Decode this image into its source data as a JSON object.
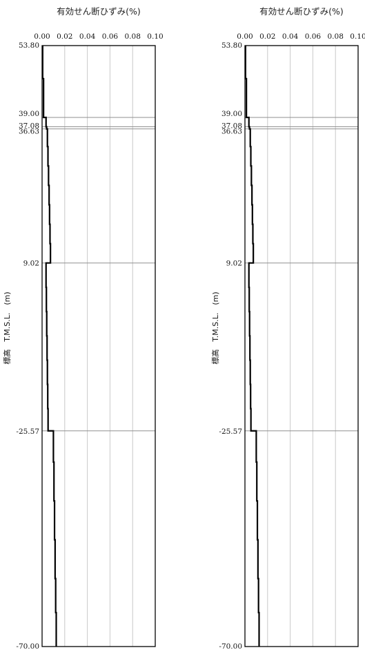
{
  "chart_data": [
    {
      "type": "line",
      "title": "有効せん断ひずみ(%)",
      "xlabel": "",
      "ylabel": "標高　T.M.S.L.　(m)",
      "xlim": [
        0.0,
        0.1
      ],
      "ylim": [
        -70.0,
        53.8
      ],
      "x_ticks": [
        "0.00",
        "0.02",
        "0.04",
        "0.06",
        "0.08",
        "0.10"
      ],
      "layer_boundaries": [
        "53.80",
        "39.00",
        "37.08",
        "36.63",
        "9.02",
        "-25.57",
        "-70.00"
      ],
      "grid": true,
      "series": [
        {
          "points": [
            [
              0.0005,
              53.8
            ],
            [
              0.0005,
              47.0
            ],
            [
              0.0013,
              47.0
            ],
            [
              0.0013,
              39.0
            ],
            [
              0.0035,
              39.0
            ],
            [
              0.0035,
              37.08
            ],
            [
              0.004,
              37.08
            ],
            [
              0.004,
              36.63
            ],
            [
              0.0047,
              36.63
            ],
            [
              0.0047,
              33.0
            ],
            [
              0.0052,
              33.0
            ],
            [
              0.0052,
              29.0
            ],
            [
              0.0057,
              29.0
            ],
            [
              0.0057,
              25.0
            ],
            [
              0.0062,
              25.0
            ],
            [
              0.0062,
              21.0
            ],
            [
              0.0066,
              21.0
            ],
            [
              0.0066,
              17.0
            ],
            [
              0.007,
              17.0
            ],
            [
              0.007,
              13.0
            ],
            [
              0.0074,
              13.0
            ],
            [
              0.0074,
              9.02
            ],
            [
              0.0035,
              9.02
            ],
            [
              0.0035,
              4.0
            ],
            [
              0.0038,
              4.0
            ],
            [
              0.0038,
              -1.0
            ],
            [
              0.0041,
              -1.0
            ],
            [
              0.0041,
              -6.0
            ],
            [
              0.0044,
              -6.0
            ],
            [
              0.0044,
              -11.0
            ],
            [
              0.0047,
              -11.0
            ],
            [
              0.0047,
              -16.0
            ],
            [
              0.005,
              -16.0
            ],
            [
              0.005,
              -21.0
            ],
            [
              0.0053,
              -21.0
            ],
            [
              0.0053,
              -25.57
            ],
            [
              0.01,
              -25.57
            ],
            [
              0.01,
              -32.0
            ],
            [
              0.0105,
              -32.0
            ],
            [
              0.0105,
              -40.0
            ],
            [
              0.011,
              -40.0
            ],
            [
              0.011,
              -48.0
            ],
            [
              0.0115,
              -48.0
            ],
            [
              0.0115,
              -56.0
            ],
            [
              0.012,
              -56.0
            ],
            [
              0.012,
              -63.0
            ],
            [
              0.0125,
              -63.0
            ],
            [
              0.0125,
              -70.0
            ]
          ]
        }
      ]
    },
    {
      "type": "line",
      "title": "有効せん断ひずみ(%)",
      "xlabel": "",
      "ylabel": "標高　T.M.S.L.　(m)",
      "xlim": [
        0.0,
        0.1
      ],
      "ylim": [
        -70.0,
        53.8
      ],
      "x_ticks": [
        "0.00",
        "0.02",
        "0.04",
        "0.06",
        "0.08",
        "0.10"
      ],
      "layer_boundaries": [
        "53.80",
        "39.00",
        "37.08",
        "36.63",
        "9.02",
        "-25.57",
        "-70.00"
      ],
      "grid": true,
      "series": [
        {
          "points": [
            [
              0.0005,
              53.8
            ],
            [
              0.0005,
              47.0
            ],
            [
              0.0013,
              47.0
            ],
            [
              0.0013,
              39.0
            ],
            [
              0.0035,
              39.0
            ],
            [
              0.0035,
              37.08
            ],
            [
              0.004,
              37.08
            ],
            [
              0.004,
              36.63
            ],
            [
              0.0047,
              36.63
            ],
            [
              0.0047,
              33.0
            ],
            [
              0.0052,
              33.0
            ],
            [
              0.0052,
              29.0
            ],
            [
              0.0057,
              29.0
            ],
            [
              0.0057,
              25.0
            ],
            [
              0.0062,
              25.0
            ],
            [
              0.0062,
              21.0
            ],
            [
              0.0066,
              21.0
            ],
            [
              0.0066,
              17.0
            ],
            [
              0.007,
              17.0
            ],
            [
              0.007,
              13.0
            ],
            [
              0.0074,
              13.0
            ],
            [
              0.0074,
              9.02
            ],
            [
              0.0035,
              9.02
            ],
            [
              0.0035,
              4.0
            ],
            [
              0.0038,
              4.0
            ],
            [
              0.0038,
              -1.0
            ],
            [
              0.0041,
              -1.0
            ],
            [
              0.0041,
              -6.0
            ],
            [
              0.0044,
              -6.0
            ],
            [
              0.0044,
              -11.0
            ],
            [
              0.0047,
              -11.0
            ],
            [
              0.0047,
              -16.0
            ],
            [
              0.005,
              -16.0
            ],
            [
              0.005,
              -21.0
            ],
            [
              0.0053,
              -21.0
            ],
            [
              0.0053,
              -25.57
            ],
            [
              0.01,
              -25.57
            ],
            [
              0.01,
              -32.0
            ],
            [
              0.0105,
              -32.0
            ],
            [
              0.0105,
              -40.0
            ],
            [
              0.011,
              -40.0
            ],
            [
              0.011,
              -48.0
            ],
            [
              0.0115,
              -48.0
            ],
            [
              0.0115,
              -56.0
            ],
            [
              0.012,
              -56.0
            ],
            [
              0.012,
              -63.0
            ],
            [
              0.0125,
              -63.0
            ],
            [
              0.0125,
              -70.0
            ]
          ]
        }
      ]
    }
  ]
}
